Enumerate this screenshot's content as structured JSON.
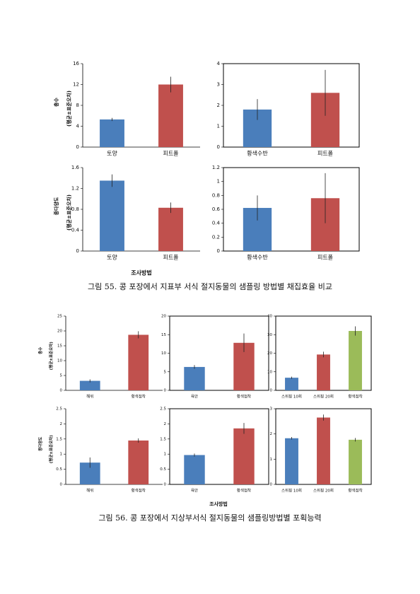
{
  "chart_data": [
    {
      "type": "bar",
      "ylabel": [
        "충수",
        "(평균±표준오차)"
      ],
      "categories": [
        "토양",
        "피트폴"
      ],
      "values": [
        5.3,
        12
      ],
      "errors": [
        0.3,
        1.5
      ],
      "colors": [
        "#4a7ebb",
        "#c0504d"
      ],
      "ylim": [
        0,
        16
      ],
      "yticks": [
        0,
        4,
        8,
        12,
        16
      ],
      "box": false
    },
    {
      "type": "bar",
      "categories": [
        "황색수반",
        "피트폴"
      ],
      "values": [
        1.8,
        2.6
      ],
      "errors": [
        0.5,
        1.1
      ],
      "colors": [
        "#4a7ebb",
        "#c0504d"
      ],
      "ylim": [
        0,
        4
      ],
      "yticks": [
        0,
        1,
        2,
        3,
        4
      ],
      "box": true
    },
    {
      "type": "bar",
      "ylabel": [
        "종다양도",
        "(평균±표준오차)"
      ],
      "categories": [
        "토양",
        "피트폴"
      ],
      "values": [
        1.35,
        0.83
      ],
      "errors": [
        0.12,
        0.1
      ],
      "colors": [
        "#4a7ebb",
        "#c0504d"
      ],
      "ylim": [
        0,
        1.6
      ],
      "yticks": [
        0,
        0.4,
        0.8,
        1.2,
        1.6
      ],
      "box": false
    },
    {
      "type": "bar",
      "categories": [
        "황색수반",
        "피트폴"
      ],
      "values": [
        0.62,
        0.76
      ],
      "errors": [
        0.18,
        0.36
      ],
      "colors": [
        "#4a7ebb",
        "#c0504d"
      ],
      "ylim": [
        0,
        1.2
      ],
      "yticks": [
        0,
        0.2,
        0.4,
        0.6,
        0.8,
        1,
        1.2
      ],
      "box": true
    },
    {
      "type": "bar",
      "ylabel": [
        "충수",
        "(평균±표준오차)"
      ],
      "categories": [
        "해위",
        "황색점착"
      ],
      "values": [
        3.2,
        18.7
      ],
      "errors": [
        0.5,
        1.2
      ],
      "colors": [
        "#4a7ebb",
        "#c0504d"
      ],
      "ylim": [
        0,
        25
      ],
      "yticks": [
        0,
        5,
        10,
        15,
        20,
        25
      ],
      "box": false
    },
    {
      "type": "bar",
      "categories": [
        "육안",
        "황색점착"
      ],
      "values": [
        6.3,
        12.8
      ],
      "errors": [
        0.5,
        2.5
      ],
      "colors": [
        "#4a7ebb",
        "#c0504d"
      ],
      "ylim": [
        0,
        20
      ],
      "yticks": [
        0,
        5,
        10,
        15,
        20
      ],
      "box": true
    },
    {
      "type": "bar",
      "categories": [
        "스위핑 10회",
        "스위핑 20회",
        "황색점착"
      ],
      "values": [
        6.8,
        19.3,
        32
      ],
      "errors": [
        0.6,
        1.5,
        2.5
      ],
      "colors": [
        "#4a7ebb",
        "#c0504d",
        "#9bbb59"
      ],
      "ylim": [
        0,
        40
      ],
      "yticks": [
        0,
        10,
        20,
        30,
        40
      ],
      "box": true
    },
    {
      "type": "bar",
      "ylabel": [
        "종다양도",
        "(평균±표준오차)"
      ],
      "categories": [
        "해위",
        "황색점착"
      ],
      "values": [
        0.72,
        1.45
      ],
      "errors": [
        0.17,
        0.07
      ],
      "colors": [
        "#4a7ebb",
        "#c0504d"
      ],
      "ylim": [
        0,
        2.5
      ],
      "yticks": [
        0,
        0.5,
        1,
        1.5,
        2,
        2.5
      ],
      "box": false
    },
    {
      "type": "bar",
      "categories": [
        "육안",
        "황색점착"
      ],
      "values": [
        0.97,
        1.85
      ],
      "errors": [
        0.05,
        0.18
      ],
      "colors": [
        "#4a7ebb",
        "#c0504d"
      ],
      "ylim": [
        0,
        2.5
      ],
      "yticks": [
        0,
        0.5,
        1,
        1.5,
        2,
        2.5
      ],
      "box": true
    },
    {
      "type": "bar",
      "categories": [
        "스위핑 10회",
        "스위핑 20회",
        "황색점착"
      ],
      "values": [
        1.83,
        2.65,
        1.77
      ],
      "errors": [
        0.05,
        0.12,
        0.07
      ],
      "colors": [
        "#4a7ebb",
        "#c0504d",
        "#9bbb59"
      ],
      "ylim": [
        0,
        3
      ],
      "yticks": [
        0,
        1,
        2,
        3
      ],
      "box": true
    }
  ],
  "figures": [
    {
      "xlabel": "조사방법",
      "caption": "그림 55. 콩 포장에서 지표부 서식 절지동물의 샘플링 방법별 채집효율 비교"
    },
    {
      "xlabel": "조사방법",
      "caption": "그림 56. 콩 포장에서 지상부서식 절지동물의 샘플링방법별 포획능력"
    }
  ]
}
